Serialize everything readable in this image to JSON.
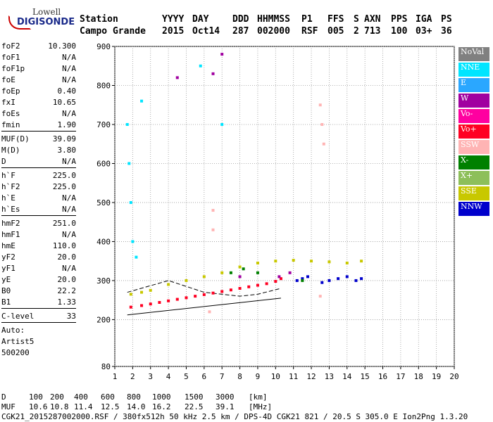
{
  "logo": {
    "line1": "Lowell",
    "line2": "DIGISONDE"
  },
  "header": {
    "labels": [
      "Station",
      "YYYY",
      "DAY",
      "DDD",
      "HHMMSS",
      "P1",
      "FFS",
      "S",
      "AXN",
      "PPS",
      "IGA",
      "PS"
    ],
    "values": [
      "Campo Grande",
      "2015",
      "Oct14",
      "287",
      "002000",
      "RSF",
      "005",
      "2",
      "713",
      "100",
      "03+",
      "36"
    ]
  },
  "params": {
    "group1": [
      {
        "k": "foF2",
        "v": "10.300"
      },
      {
        "k": "foF1",
        "v": "N/A"
      },
      {
        "k": "foF1p",
        "v": "N/A"
      },
      {
        "k": "foE",
        "v": "N/A"
      },
      {
        "k": "foEp",
        "v": "0.40"
      },
      {
        "k": "fxI",
        "v": "10.65"
      },
      {
        "k": "foEs",
        "v": "N/A"
      },
      {
        "k": "fmin",
        "v": "1.90"
      }
    ],
    "group2": [
      {
        "k": "MUF(D)",
        "v": "39.09"
      },
      {
        "k": "M(D)",
        "v": "3.80"
      },
      {
        "k": "D",
        "v": "N/A"
      }
    ],
    "group3": [
      {
        "k": "h`F",
        "v": "225.0"
      },
      {
        "k": "h`F2",
        "v": "225.0"
      },
      {
        "k": "h`E",
        "v": "N/A"
      },
      {
        "k": "h`Es",
        "v": "N/A"
      }
    ],
    "group4": [
      {
        "k": "hmF2",
        "v": "251.0"
      },
      {
        "k": "hmF1",
        "v": "N/A"
      },
      {
        "k": "hmE",
        "v": "110.0"
      },
      {
        "k": "yF2",
        "v": "20.0"
      },
      {
        "k": "yF1",
        "v": "N/A"
      },
      {
        "k": "yE",
        "v": "20.0"
      },
      {
        "k": "B0",
        "v": "22.2"
      },
      {
        "k": "B1",
        "v": "1.33"
      }
    ],
    "group5": [
      {
        "k": "C-level",
        "v": "33"
      }
    ],
    "auto": [
      "Auto:",
      "Artist5",
      "500200"
    ]
  },
  "legend": [
    {
      "label": "NoVal",
      "color": "#808080"
    },
    {
      "label": "NNE",
      "color": "#00e5ff"
    },
    {
      "label": "E",
      "color": "#2aa7ff"
    },
    {
      "label": "W",
      "color": "#a000a0"
    },
    {
      "label": "Vo-",
      "color": "#ff00a0"
    },
    {
      "label": "Vo+",
      "color": "#ff0022"
    },
    {
      "label": "SSW",
      "color": "#ffb4b4"
    },
    {
      "label": "X-",
      "color": "#008000"
    },
    {
      "label": "X+",
      "color": "#8dbf5a"
    },
    {
      "label": "SSE",
      "color": "#c8c800"
    },
    {
      "label": "NNW",
      "color": "#0000cc"
    }
  ],
  "footer": {
    "d_label": "D",
    "d_values": [
      "100",
      "200",
      "400",
      "600",
      "800",
      "1000",
      "1500",
      "3000",
      "[km]"
    ],
    "muf_label": "MUF",
    "muf_values": [
      "10.6",
      "10.8",
      "11.4",
      "12.5",
      "14.0",
      "16.2",
      "22.5",
      "39.1",
      "[MHz]"
    ],
    "info": "CGK21_2015287002000.RSF / 380fx512h 50 kHz 2.5 km / DPS-4D CGK21 821 / 20.5 S 305.0 E Ion2Png 1.3.20"
  },
  "chart_data": {
    "type": "scatter",
    "xlim": [
      1,
      20
    ],
    "ylim": [
      80,
      900
    ],
    "x_ticks": [
      1,
      2,
      3,
      4,
      5,
      6,
      7,
      8,
      9,
      10,
      11,
      12,
      13,
      14,
      15,
      16,
      17,
      18,
      19,
      20
    ],
    "y_ticks": [
      80,
      200,
      300,
      400,
      500,
      600,
      700,
      800,
      900
    ],
    "series": [
      {
        "name": "Vo+",
        "points": [
          [
            1.9,
            232
          ],
          [
            2.5,
            236
          ],
          [
            3,
            240
          ],
          [
            3.5,
            244
          ],
          [
            4,
            248
          ],
          [
            4.5,
            252
          ],
          [
            5,
            256
          ],
          [
            5.5,
            260
          ],
          [
            6,
            264
          ],
          [
            6.5,
            268
          ],
          [
            7,
            272
          ],
          [
            7.5,
            276
          ],
          [
            8,
            280
          ],
          [
            8.5,
            284
          ],
          [
            9,
            288
          ],
          [
            9.5,
            292
          ],
          [
            10,
            298
          ],
          [
            10.3,
            305
          ]
        ]
      },
      {
        "name": "SSE",
        "points": [
          [
            1.9,
            265
          ],
          [
            2.5,
            270
          ],
          [
            3,
            275
          ],
          [
            4,
            290
          ],
          [
            5,
            300
          ],
          [
            6,
            310
          ],
          [
            7,
            320
          ],
          [
            8,
            335
          ],
          [
            9,
            345
          ],
          [
            10,
            350
          ],
          [
            11,
            352
          ],
          [
            12,
            350
          ],
          [
            13,
            348
          ],
          [
            14,
            345
          ],
          [
            14.8,
            350
          ]
        ]
      },
      {
        "name": "NNW",
        "points": [
          [
            11.2,
            300
          ],
          [
            11.5,
            305
          ],
          [
            11.8,
            310
          ],
          [
            12.6,
            295
          ],
          [
            13,
            300
          ],
          [
            13.5,
            305
          ],
          [
            14,
            310
          ],
          [
            14.5,
            300
          ],
          [
            14.8,
            305
          ]
        ]
      },
      {
        "name": "NNE",
        "points": [
          [
            1.7,
            700
          ],
          [
            1.8,
            600
          ],
          [
            1.9,
            500
          ],
          [
            2,
            400
          ],
          [
            2.2,
            360
          ],
          [
            5.8,
            850
          ],
          [
            7,
            700
          ],
          [
            2.5,
            760
          ]
        ]
      },
      {
        "name": "W",
        "points": [
          [
            7,
            880
          ],
          [
            6.5,
            830
          ],
          [
            4.5,
            820
          ],
          [
            8,
            310
          ],
          [
            10.2,
            310
          ],
          [
            10.8,
            320
          ]
        ]
      },
      {
        "name": "SSW",
        "points": [
          [
            12.5,
            750
          ],
          [
            12.6,
            700
          ],
          [
            12.7,
            650
          ],
          [
            6.5,
            480
          ],
          [
            6.5,
            430
          ],
          [
            6.3,
            220
          ],
          [
            12.5,
            260
          ]
        ]
      },
      {
        "name": "X-",
        "points": [
          [
            7.5,
            320
          ],
          [
            8.2,
            330
          ],
          [
            9,
            320
          ],
          [
            11.5,
            300
          ]
        ]
      }
    ],
    "fit_lines": [
      {
        "name": "virtual-height-fit",
        "points": [
          [
            1.7,
            212
          ],
          [
            10.3,
            255
          ]
        ]
      },
      {
        "name": "true-height-profile",
        "points": [
          [
            1.7,
            270
          ],
          [
            4,
            300
          ],
          [
            6,
            270
          ],
          [
            8,
            260
          ],
          [
            9,
            265
          ],
          [
            10.3,
            280
          ]
        ]
      }
    ]
  }
}
